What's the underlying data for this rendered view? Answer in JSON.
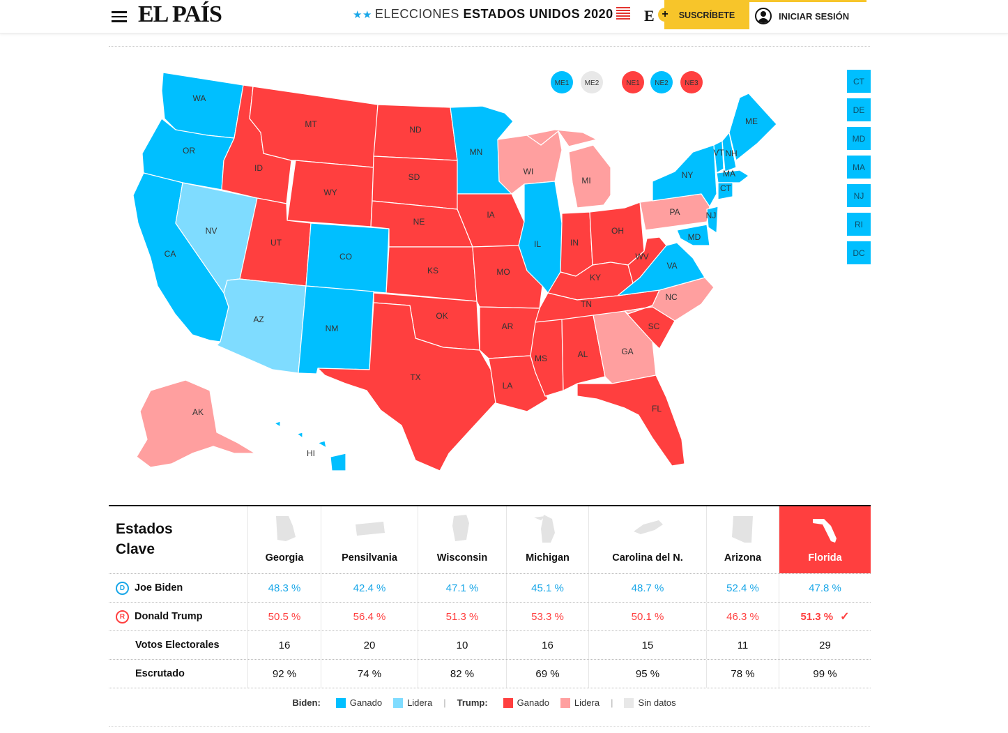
{
  "header": {
    "logo": "EL PAÍS",
    "title_light": "ELECCIONES",
    "title_bold": "ESTADOS UNIDOS 2020",
    "e_badge": "E",
    "e_plus": "+",
    "subscribe_label": "SUSCRÍBETE",
    "login_label": "INICIAR SESIÓN",
    "icons": [
      "menu-icon",
      "flag-icon",
      "avatar-icon"
    ]
  },
  "colors": {
    "biden_won": "#00bfff",
    "biden_leads": "#7fdcff",
    "trump_won": "#ff3f3f",
    "trump_leads": "#ff9f9f",
    "no_data": "#e8e8e8",
    "subscribe": "#f7c52a"
  },
  "map": {
    "district_circles": [
      {
        "label": "ME1",
        "status": "biden_won"
      },
      {
        "label": "ME2",
        "status": "no_data"
      },
      {
        "label": "NE1",
        "status": "trump_won"
      },
      {
        "label": "NE2",
        "status": "biden_won"
      },
      {
        "label": "NE3",
        "status": "trump_won"
      }
    ],
    "small_states": [
      "CT",
      "DE",
      "MD",
      "MA",
      "NJ",
      "RI",
      "DC"
    ],
    "states": {
      "WA": "biden_won",
      "OR": "biden_won",
      "CA": "biden_won",
      "NV": "biden_leads",
      "ID": "trump_won",
      "MT": "trump_won",
      "WY": "trump_won",
      "UT": "trump_won",
      "AZ": "biden_leads",
      "CO": "biden_won",
      "NM": "biden_won",
      "ND": "trump_won",
      "SD": "trump_won",
      "NE": "trump_won",
      "KS": "trump_won",
      "OK": "trump_won",
      "TX": "trump_won",
      "MN": "biden_won",
      "IA": "trump_won",
      "MO": "trump_won",
      "AR": "trump_won",
      "LA": "trump_won",
      "WI": "trump_leads",
      "IL": "biden_won",
      "MI": "trump_leads",
      "IN": "trump_won",
      "OH": "trump_won",
      "KY": "trump_won",
      "TN": "trump_won",
      "MS": "trump_won",
      "AL": "trump_won",
      "GA": "trump_leads",
      "FL": "trump_won",
      "SC": "trump_won",
      "NC": "trump_leads",
      "WV": "trump_won",
      "VA": "biden_won",
      "PA": "trump_leads",
      "NY": "biden_won",
      "VT": "biden_won",
      "NH": "biden_won",
      "ME": "biden_won",
      "MA": "biden_won",
      "CT": "biden_won",
      "NJ": "biden_won",
      "MD": "biden_won",
      "AK": "trump_leads",
      "HI": "biden_won"
    }
  },
  "key_states": {
    "title_line1": "Estados",
    "title_line2": "Clave",
    "columns": [
      {
        "name": "Georgia",
        "biden": "48.3 %",
        "trump": "50.5 %",
        "electoral": "16",
        "counted": "92 %"
      },
      {
        "name": "Pensilvania",
        "biden": "42.4 %",
        "trump": "56.4 %",
        "electoral": "20",
        "counted": "74 %"
      },
      {
        "name": "Wisconsin",
        "biden": "47.1 %",
        "trump": "51.3 %",
        "electoral": "10",
        "counted": "82 %"
      },
      {
        "name": "Michigan",
        "biden": "45.1 %",
        "trump": "53.3 %",
        "electoral": "16",
        "counted": "69 %"
      },
      {
        "name": "Carolina del N.",
        "biden": "48.7 %",
        "trump": "50.1 %",
        "electoral": "15",
        "counted": "95 %"
      },
      {
        "name": "Arizona",
        "biden": "52.4 %",
        "trump": "46.3 %",
        "electoral": "11",
        "counted": "78 %"
      },
      {
        "name": "Florida",
        "biden": "47.8 %",
        "trump": "51.3 %",
        "electoral": "29",
        "counted": "99 %"
      }
    ],
    "rows": {
      "biden": "Joe Biden",
      "trump": "Donald Trump",
      "electoral": "Votos Electorales",
      "counted": "Escrutado"
    },
    "biden_letter": "D",
    "trump_letter": "R"
  },
  "legend": {
    "biden_title": "Biden:",
    "trump_title": "Trump:",
    "won": "Ganado",
    "leads": "Lidera",
    "no_data": "Sin datos",
    "sep": "|"
  }
}
